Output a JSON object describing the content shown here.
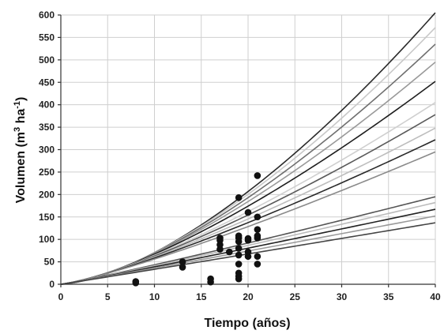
{
  "chart_data": {
    "type": "scatter",
    "title": "",
    "xlabel": "Tiempo (años)",
    "ylabel_parts": {
      "main": "Volumen (m",
      "sup1": "3",
      "mid": " ha",
      "sup2": "-1",
      "end": ")"
    },
    "xlim": [
      0,
      40
    ],
    "ylim": [
      0,
      600
    ],
    "xticks": [
      0,
      5,
      10,
      15,
      20,
      25,
      30,
      35,
      40
    ],
    "yticks": [
      0,
      50,
      100,
      150,
      200,
      250,
      300,
      350,
      400,
      450,
      500,
      550,
      600
    ],
    "grid": true,
    "legend": "none",
    "points": [
      {
        "x": 8,
        "y": 3
      },
      {
        "x": 8,
        "y": 6
      },
      {
        "x": 13,
        "y": 38
      },
      {
        "x": 13,
        "y": 50
      },
      {
        "x": 16,
        "y": 5
      },
      {
        "x": 16,
        "y": 12
      },
      {
        "x": 17,
        "y": 78
      },
      {
        "x": 17,
        "y": 88
      },
      {
        "x": 17,
        "y": 98
      },
      {
        "x": 17,
        "y": 103
      },
      {
        "x": 18,
        "y": 72
      },
      {
        "x": 19,
        "y": 12
      },
      {
        "x": 19,
        "y": 18
      },
      {
        "x": 19,
        "y": 25
      },
      {
        "x": 19,
        "y": 45
      },
      {
        "x": 19,
        "y": 65
      },
      {
        "x": 19,
        "y": 80
      },
      {
        "x": 19,
        "y": 95
      },
      {
        "x": 19,
        "y": 103
      },
      {
        "x": 19,
        "y": 108
      },
      {
        "x": 19,
        "y": 193
      },
      {
        "x": 20,
        "y": 62
      },
      {
        "x": 20,
        "y": 72
      },
      {
        "x": 20,
        "y": 98
      },
      {
        "x": 20,
        "y": 102
      },
      {
        "x": 20,
        "y": 160
      },
      {
        "x": 21,
        "y": 45
      },
      {
        "x": 21,
        "y": 62
      },
      {
        "x": 21,
        "y": 103
      },
      {
        "x": 21,
        "y": 108
      },
      {
        "x": 21,
        "y": 122
      },
      {
        "x": 21,
        "y": 150
      },
      {
        "x": 21,
        "y": 242
      }
    ],
    "curves": [
      {
        "y_at_40": 605,
        "color": "#2a2a2a"
      },
      {
        "y_at_40": 572,
        "color": "#c8c8c8"
      },
      {
        "y_at_40": 535,
        "color": "#6f6f6f"
      },
      {
        "y_at_40": 495,
        "color": "#999999"
      },
      {
        "y_at_40": 452,
        "color": "#1e1e1e"
      },
      {
        "y_at_40": 405,
        "color": "#cfcfcf"
      },
      {
        "y_at_40": 378,
        "color": "#5a5a5a"
      },
      {
        "y_at_40": 348,
        "color": "#bdbdbd"
      },
      {
        "y_at_40": 322,
        "color": "#2a2a2a"
      },
      {
        "y_at_40": 295,
        "color": "#8a8a8a"
      },
      {
        "y_at_40": 195,
        "color": "#555555"
      },
      {
        "y_at_40": 182,
        "color": "#bbbbbb"
      },
      {
        "y_at_40": 167,
        "color": "#222222"
      },
      {
        "y_at_40": 152,
        "color": "#9a9a9a"
      },
      {
        "y_at_40": 137,
        "color": "#444444"
      }
    ],
    "point_color": "#111111"
  }
}
